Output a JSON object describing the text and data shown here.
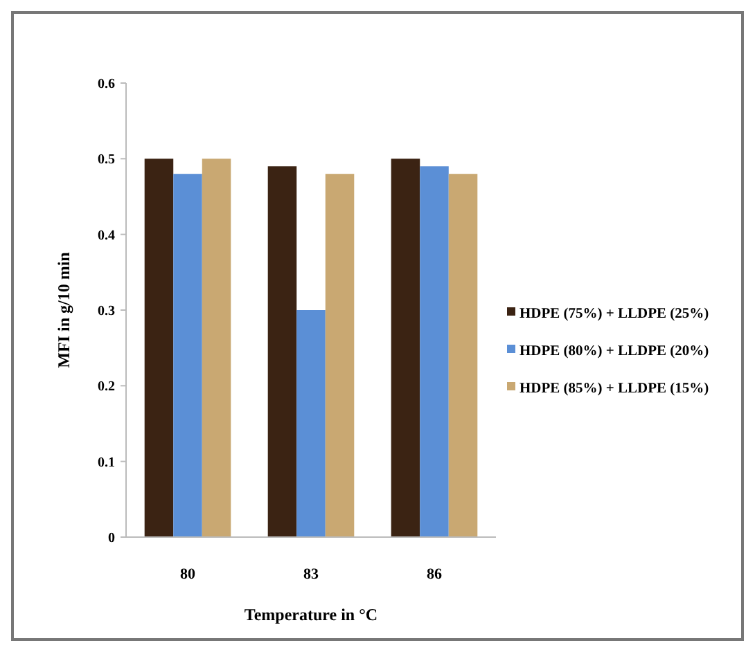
{
  "chart_data": {
    "type": "bar",
    "xlabel": "Temperature in °C",
    "ylabel": "MFI in g/10 min",
    "categories": [
      "80",
      "83",
      "86"
    ],
    "series": [
      {
        "name": "HDPE (75%) + LLDPE (25%)",
        "color": "#3b2313",
        "values": [
          0.5,
          0.49,
          0.5
        ]
      },
      {
        "name": "HDPE (80%) + LLDPE (20%)",
        "color": "#5b8fd6",
        "values": [
          0.48,
          0.3,
          0.49
        ]
      },
      {
        "name": "HDPE (85%) + LLDPE (15%)",
        "color": "#c9a872",
        "values": [
          0.5,
          0.48,
          0.48
        ]
      }
    ],
    "ylim": [
      0,
      0.6
    ],
    "yticks": [
      0,
      0.1,
      0.2,
      0.3,
      0.4,
      0.5,
      0.6
    ],
    "grid": false,
    "legend": "right"
  }
}
